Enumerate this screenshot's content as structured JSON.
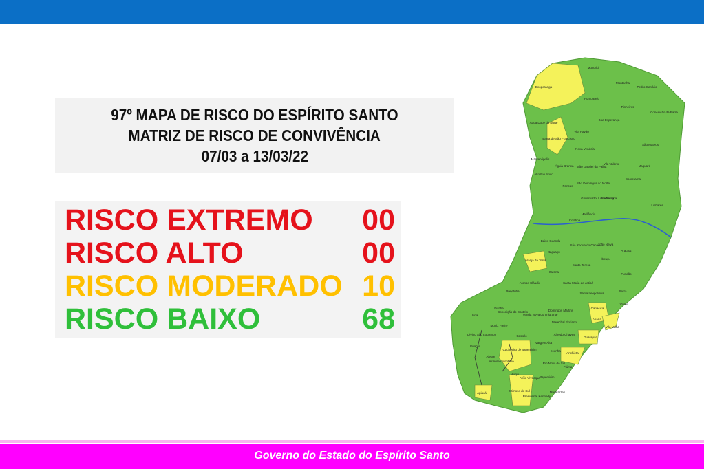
{
  "title": {
    "lines": [
      "97º MAPA DE RISCO DO ESPÍRITO SANTO",
      "MATRIZ DE RISCO DE CONVIVÊNCIA",
      "07/03 a 13/03/22"
    ]
  },
  "risks": [
    {
      "label": "RISCO EXTREMO",
      "count": "00"
    },
    {
      "label": "RISCO ALTO",
      "count": "00"
    },
    {
      "label": "RISCO MODERADO",
      "count": "10"
    },
    {
      "label": "RISCO BAIXO",
      "count": "68"
    }
  ],
  "map": {
    "labels": [
      "Mucurici",
      "Montanha",
      "Pedro Canário",
      "Ecoporanga",
      "Ponto Belo",
      "Pinheiros",
      "Conceição da Barra",
      "Boa Esperança",
      "Água Doce do Norte",
      "Barra de São Francisco",
      "Vila Pavão",
      "São Mateus",
      "Nova Venécia",
      "Mantenópolis",
      "Alto Rio Novo",
      "Águia Branca",
      "São Gabriel da Palha",
      "Vila Valério",
      "Jaguaré",
      "São Domingos do Norte",
      "Sooretama",
      "Pancas",
      "Governador Lindenberg",
      "Rio Bananal",
      "Linhares",
      "Marilândia",
      "Colatina",
      "Baixo Guandu",
      "São Roque do Canaã",
      "João Neiva",
      "Aracruz",
      "Itaguaçu",
      "Laranja da Terra",
      "Ibiraçu",
      "Santa Teresa",
      "Fundão",
      "Itarana",
      "Afonso Cláudio",
      "Santa Maria de Jetibá",
      "Serra",
      "Brejetuba",
      "Santa Leopoldina",
      "Vitória",
      "Cariacica",
      "Domingos Martins",
      "Conceição do Castelo",
      "Venda Nova do Imigrante",
      "Ibatiba",
      "Iúna",
      "Muniz Freire",
      "Marechal Floriano",
      "Viana",
      "Vila Velha",
      "Alfredo Chaves",
      "Guarapari",
      "Castelo",
      "Vargem Alta",
      "Anchieta",
      "Divino São Lourenço",
      "Guaçuí",
      "Alegre",
      "Cachoeiro de Itapemirim",
      "Jerônimo Monteiro",
      "Rio Novo do Sul",
      "Iconha",
      "Piúma",
      "Apiacá",
      "Muqui",
      "Atílio Vivácqua",
      "Itapemirim",
      "Mimoso do Sul",
      "Presidente Kennedy",
      "Marataízes"
    ]
  },
  "footer": {
    "text": "Governo do Estado do Espírito Santo"
  }
}
